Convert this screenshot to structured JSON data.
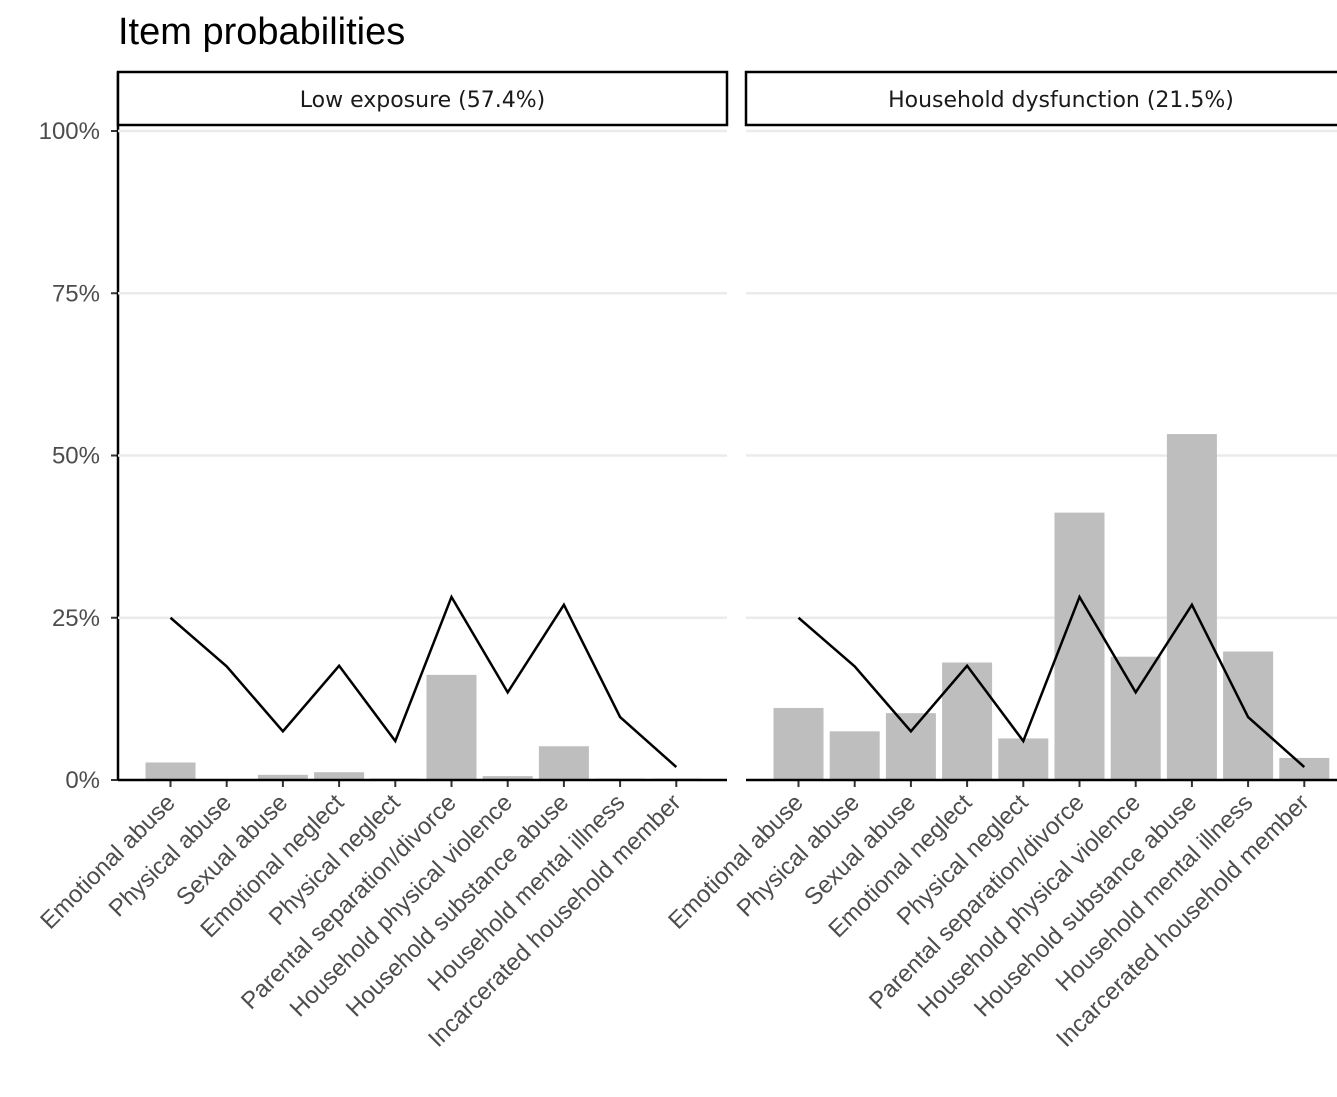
{
  "chart_data": {
    "type": "bar",
    "title": "Item probabilities",
    "xlabel": "",
    "ylabel": "",
    "ylim": [
      0,
      1
    ],
    "y_ticks": [
      0,
      0.25,
      0.5,
      0.75,
      1
    ],
    "y_tick_labels": [
      "0%",
      "25%",
      "50%",
      "75%",
      "100%"
    ],
    "grid": "horizontal",
    "colors": {
      "bar": "#bebebe",
      "line": "#000000",
      "grid": "#ebebeb"
    },
    "categories": [
      "Emotional abuse",
      "Physical abuse",
      "Sexual abuse",
      "Emotional neglect",
      "Physical neglect",
      "Parental separation/divorce",
      "Household physical violence",
      "Household substance abuse",
      "Household mental illness",
      "Incarcerated household member"
    ],
    "panels": [
      {
        "label": "Low exposure (57.4%)",
        "bars": [
          0.027,
          0.0,
          0.008,
          0.012,
          0.002,
          0.162,
          0.006,
          0.052,
          0.001,
          0.001
        ],
        "line": [
          0.25,
          0.175,
          0.075,
          0.176,
          0.06,
          0.282,
          0.135,
          0.27,
          0.097,
          0.02
        ]
      },
      {
        "label": "Household dysfunction (21.5%)",
        "bars": [
          0.111,
          0.075,
          0.103,
          0.181,
          0.064,
          0.412,
          0.19,
          0.533,
          0.198,
          0.034
        ],
        "line": [
          0.25,
          0.175,
          0.075,
          0.176,
          0.06,
          0.282,
          0.135,
          0.27,
          0.097,
          0.02
        ]
      }
    ]
  }
}
